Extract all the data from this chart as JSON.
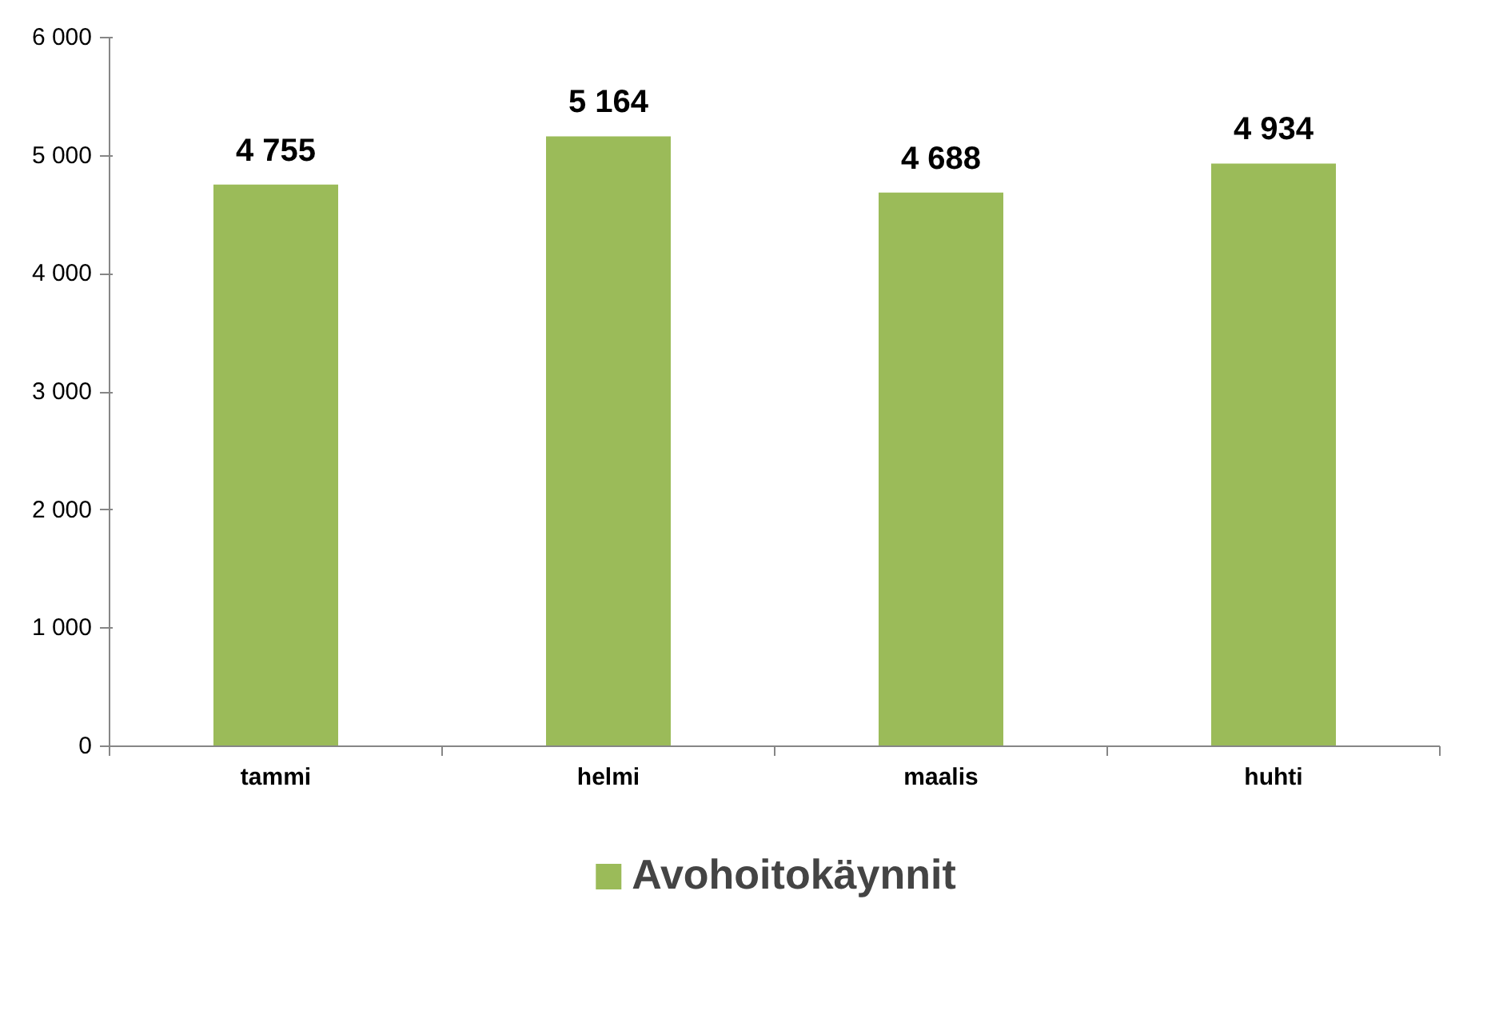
{
  "chart_data": {
    "type": "bar",
    "categories": [
      "tammi",
      "helmi",
      "maalis",
      "huhti"
    ],
    "series": [
      {
        "name": "Avohoitokäynnit",
        "color": "#9bbb59",
        "values": [
          4755,
          5164,
          4688,
          4934
        ],
        "value_labels": [
          "4 755",
          "5 164",
          "4 688",
          "4 934"
        ]
      }
    ],
    "ylim": [
      0,
      6000
    ],
    "yticks": [
      0,
      {
        "value": 1000,
        "label": "1 000"
      },
      {
        "value": 2000,
        "label": "2 000"
      },
      {
        "value": 3000,
        "label": "3 000"
      },
      {
        "value": 4000,
        "label": "4 000"
      },
      {
        "value": 5000,
        "label": "5 000"
      },
      {
        "value": 6000,
        "label": "6 000"
      }
    ],
    "grid": false,
    "legend": "bottom"
  }
}
